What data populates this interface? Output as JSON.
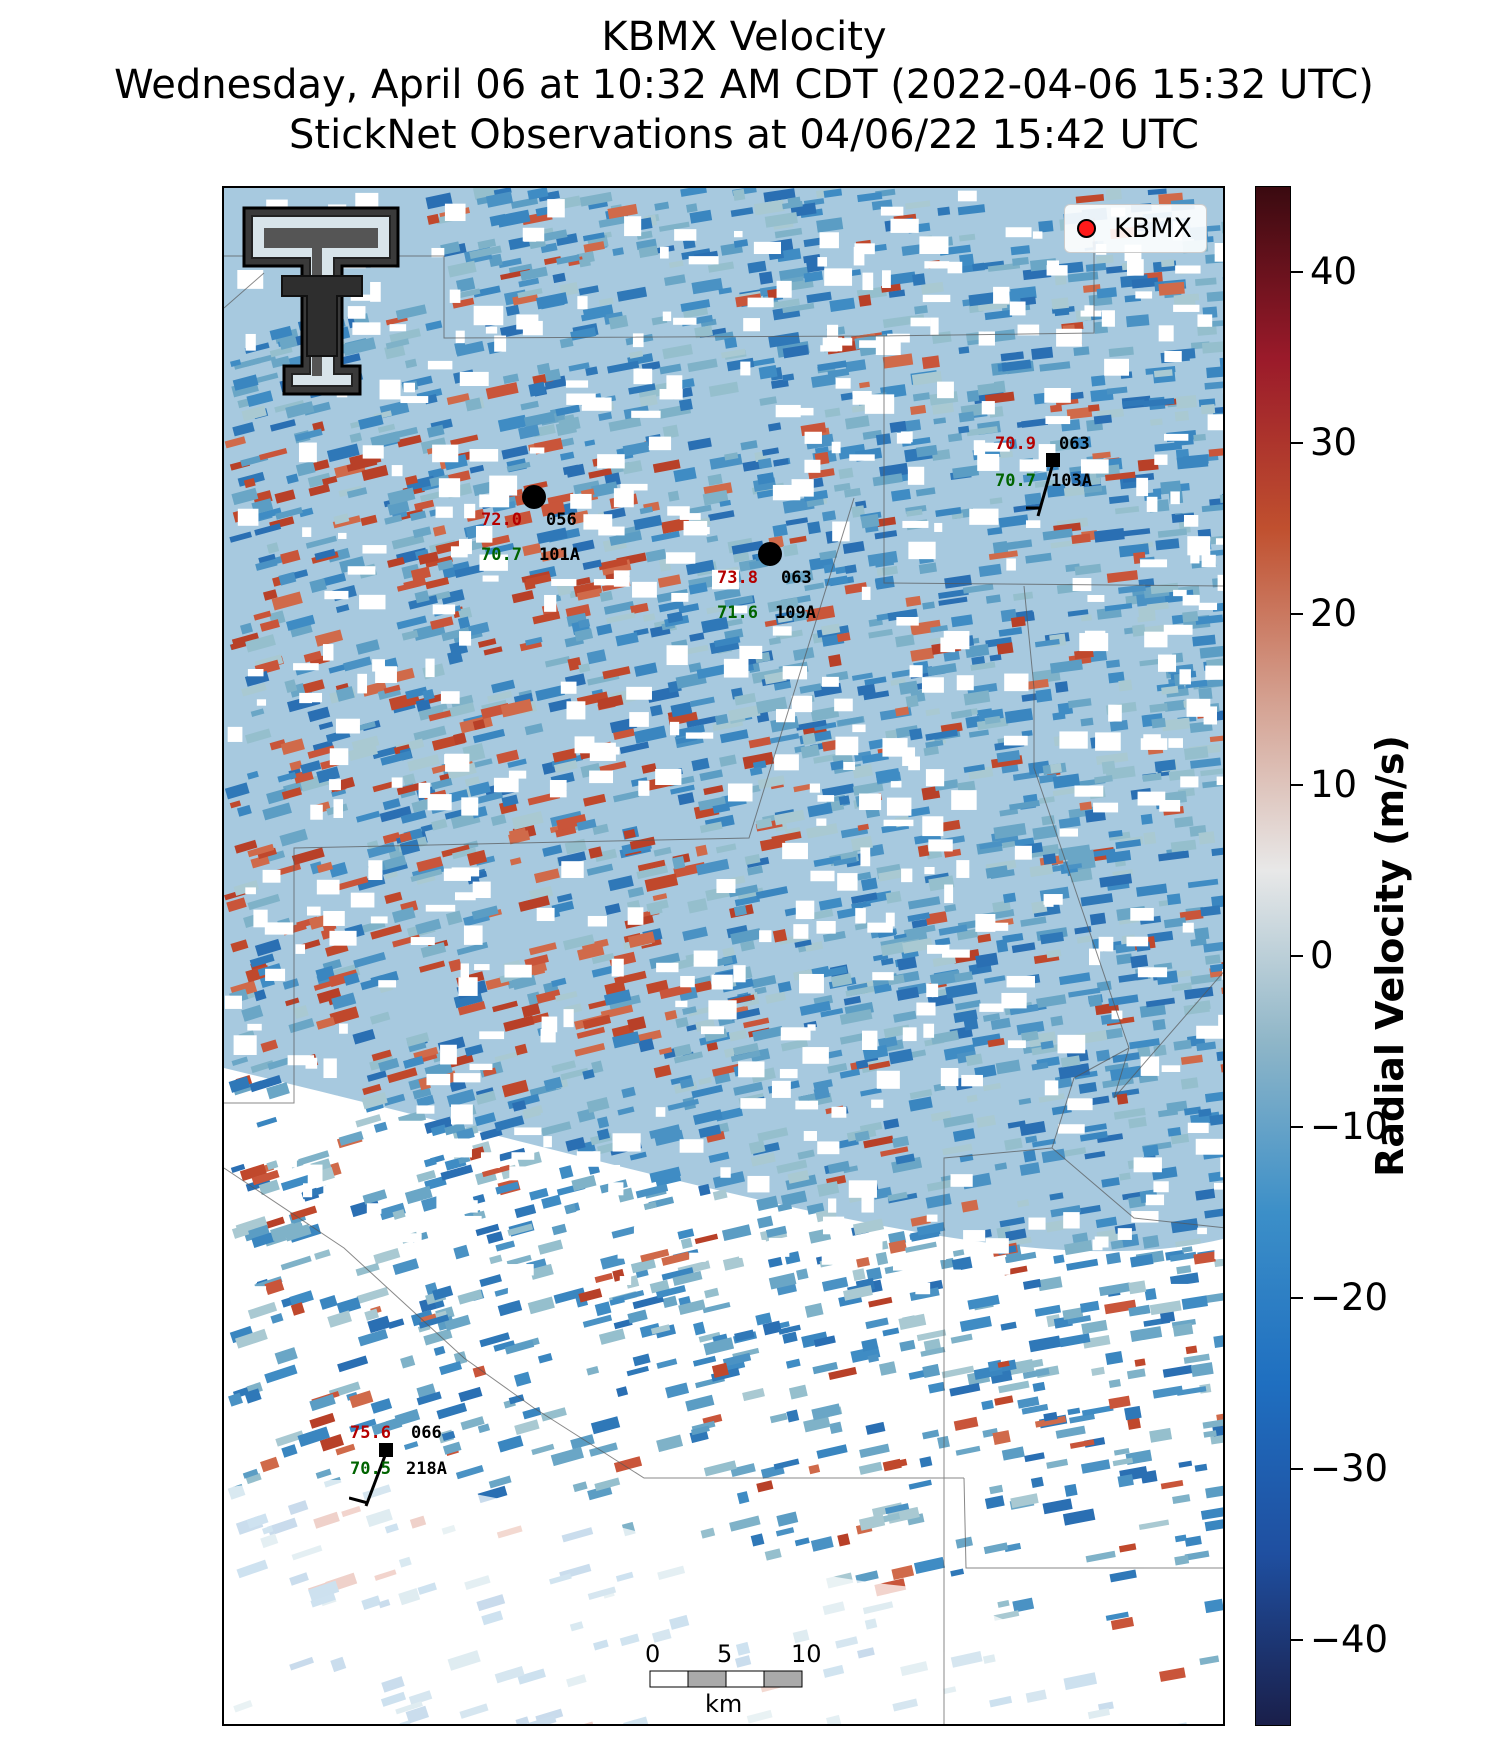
{
  "title": {
    "line1": "KBMX Velocity",
    "line2": "Wednesday, April 06 at 10:32 AM CDT (2022-04-06 15:32 UTC)",
    "line3": "StickNet Observations at 04/06/22 15:42 UTC"
  },
  "legend": {
    "label": "KBMX",
    "marker_color": "#ff1a1a"
  },
  "logo": {
    "icon": "texas-tech-double-t-logo"
  },
  "stations": [
    {
      "id": "101A",
      "temp": "72.0",
      "dew": "70.7",
      "dir": "056"
    },
    {
      "id": "109A",
      "temp": "73.8",
      "dew": "71.6",
      "dir": "063"
    },
    {
      "id": "103A",
      "temp": "70.9",
      "dew": "70.7",
      "dir": "063"
    },
    {
      "id": "218A",
      "temp": "75.6",
      "dew": "70.5",
      "dir": "066"
    }
  ],
  "scalebar": {
    "labels": [
      "0",
      "5",
      "10"
    ],
    "unit": "km"
  },
  "colorbar": {
    "label": "Radial Velocity (m/s)",
    "ticks": [
      "40",
      "30",
      "20",
      "10",
      "0",
      "−10",
      "−20",
      "−30",
      "−40"
    ],
    "range": [
      -45,
      45
    ],
    "colors": [
      "#1a1f4a",
      "#1f4fa0",
      "#1f6fc0",
      "#3c8fc8",
      "#8fb6c8",
      "#e8e8e8",
      "#d4a090",
      "#c0502f",
      "#9a1a2a",
      "#3a0a10"
    ]
  }
}
